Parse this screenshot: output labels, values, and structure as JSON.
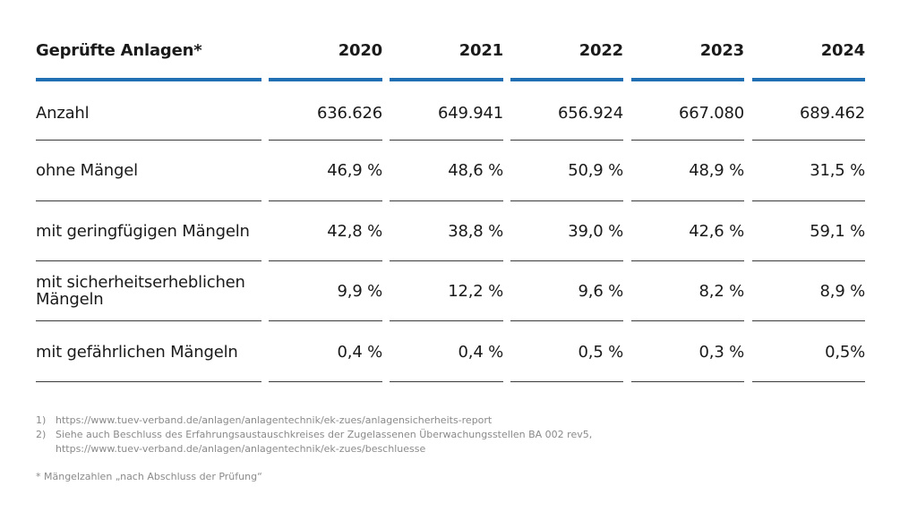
{
  "table": {
    "header": {
      "label": "Geprüfte Anlagen*",
      "years": [
        "2020",
        "2021",
        "2022",
        "2023",
        "2024"
      ]
    },
    "rows": [
      {
        "label": "Anzahl",
        "values": [
          "636.626",
          "649.941",
          "656.924",
          "667.080",
          "689.462"
        ]
      },
      {
        "label": "ohne Mängel",
        "values": [
          "46,9 %",
          "48,6 %",
          "50,9 %",
          "48,9 %",
          "31,5 %"
        ]
      },
      {
        "label": "mit geringfügigen Mängeln",
        "values": [
          "42,8 %",
          "38,8 %",
          "39,0 %",
          "42,6 %",
          "59,1 %"
        ]
      },
      {
        "label": "mit sicherheitserheblichen Mängeln",
        "values": [
          "9,9 %",
          "12,2 %",
          "9,6 %",
          "8,2 %",
          "8,9 %"
        ]
      },
      {
        "label": "mit gefährlichen Mängeln",
        "values": [
          "0,4 %",
          "0,4 %",
          "0,5 %",
          "0,3 %",
          "0,5%"
        ]
      }
    ]
  },
  "footnotes": [
    {
      "num": "1)",
      "text": "https://www.tuev-verband.de/anlagen/anlagentechnik/ek-zues/anlagensicherheits-report"
    },
    {
      "num": "2)",
      "text": "Siehe auch Beschluss des Erfahrungsaustauschkreises der Zugelassenen Überwachungsstellen BA 002 rev5,"
    },
    {
      "num": "",
      "text": "https://www.tuev-verband.de/anlagen/anlagentechnik/ek-zues/beschluesse"
    }
  ],
  "note": "* Mängelzahlen „nach Abschluss der Prüfung“",
  "colors": {
    "accent": "#1f6fb2",
    "text": "#1a1a1a",
    "footnote": "#8a8a8a"
  }
}
